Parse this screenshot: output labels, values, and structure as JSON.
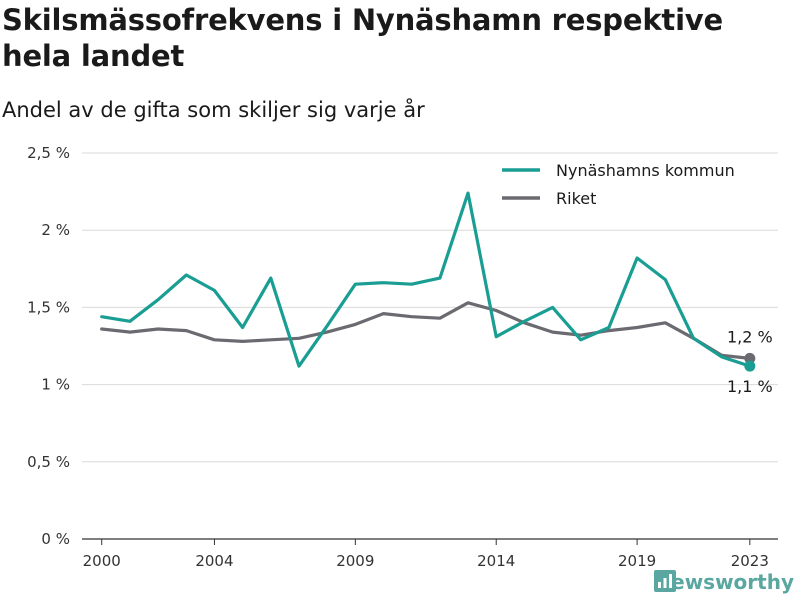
{
  "title": "Skilsmässofrekvens i Nynäshamn respektive hela landet",
  "subtitle": "Andel av de gifta som skiljer sig varje år",
  "brand": "Newsworthy",
  "colors": {
    "kommun": "#1a9e93",
    "riket": "#6b6a70",
    "grid": "#d9d9d9",
    "brand": "#5aa6a0"
  },
  "chart_data": {
    "type": "line",
    "x": [
      2000,
      2001,
      2002,
      2003,
      2004,
      2005,
      2006,
      2007,
      2008,
      2009,
      2010,
      2011,
      2012,
      2013,
      2014,
      2015,
      2016,
      2017,
      2018,
      2019,
      2020,
      2021,
      2022,
      2023
    ],
    "series": [
      {
        "name": "Nynäshamns kommun",
        "values": [
          1.44,
          1.41,
          1.55,
          1.71,
          1.61,
          1.37,
          1.69,
          1.12,
          1.38,
          1.65,
          1.66,
          1.65,
          1.69,
          2.24,
          1.31,
          1.41,
          1.5,
          1.29,
          1.37,
          1.82,
          1.68,
          1.3,
          1.18,
          1.12
        ]
      },
      {
        "name": "Riket",
        "values": [
          1.36,
          1.34,
          1.36,
          1.35,
          1.29,
          1.28,
          1.29,
          1.3,
          1.34,
          1.39,
          1.46,
          1.44,
          1.43,
          1.53,
          1.48,
          1.4,
          1.34,
          1.32,
          1.35,
          1.37,
          1.4,
          1.3,
          1.19,
          1.17
        ]
      }
    ],
    "xticks": [
      2000,
      2004,
      2009,
      2014,
      2019,
      2023
    ],
    "yticks": [
      0,
      0.5,
      1,
      1.5,
      2,
      2.5
    ],
    "ytick_labels": [
      "0 %",
      "0,5 %",
      "1 %",
      "1,5 %",
      "2 %",
      "2,5 %"
    ],
    "ylim": [
      0,
      2.5
    ],
    "xlim": [
      2000,
      2023
    ],
    "end_labels": {
      "riket": "1,2 %",
      "kommun": "1,1 %"
    },
    "legend_position": "top-right",
    "grid": true
  }
}
